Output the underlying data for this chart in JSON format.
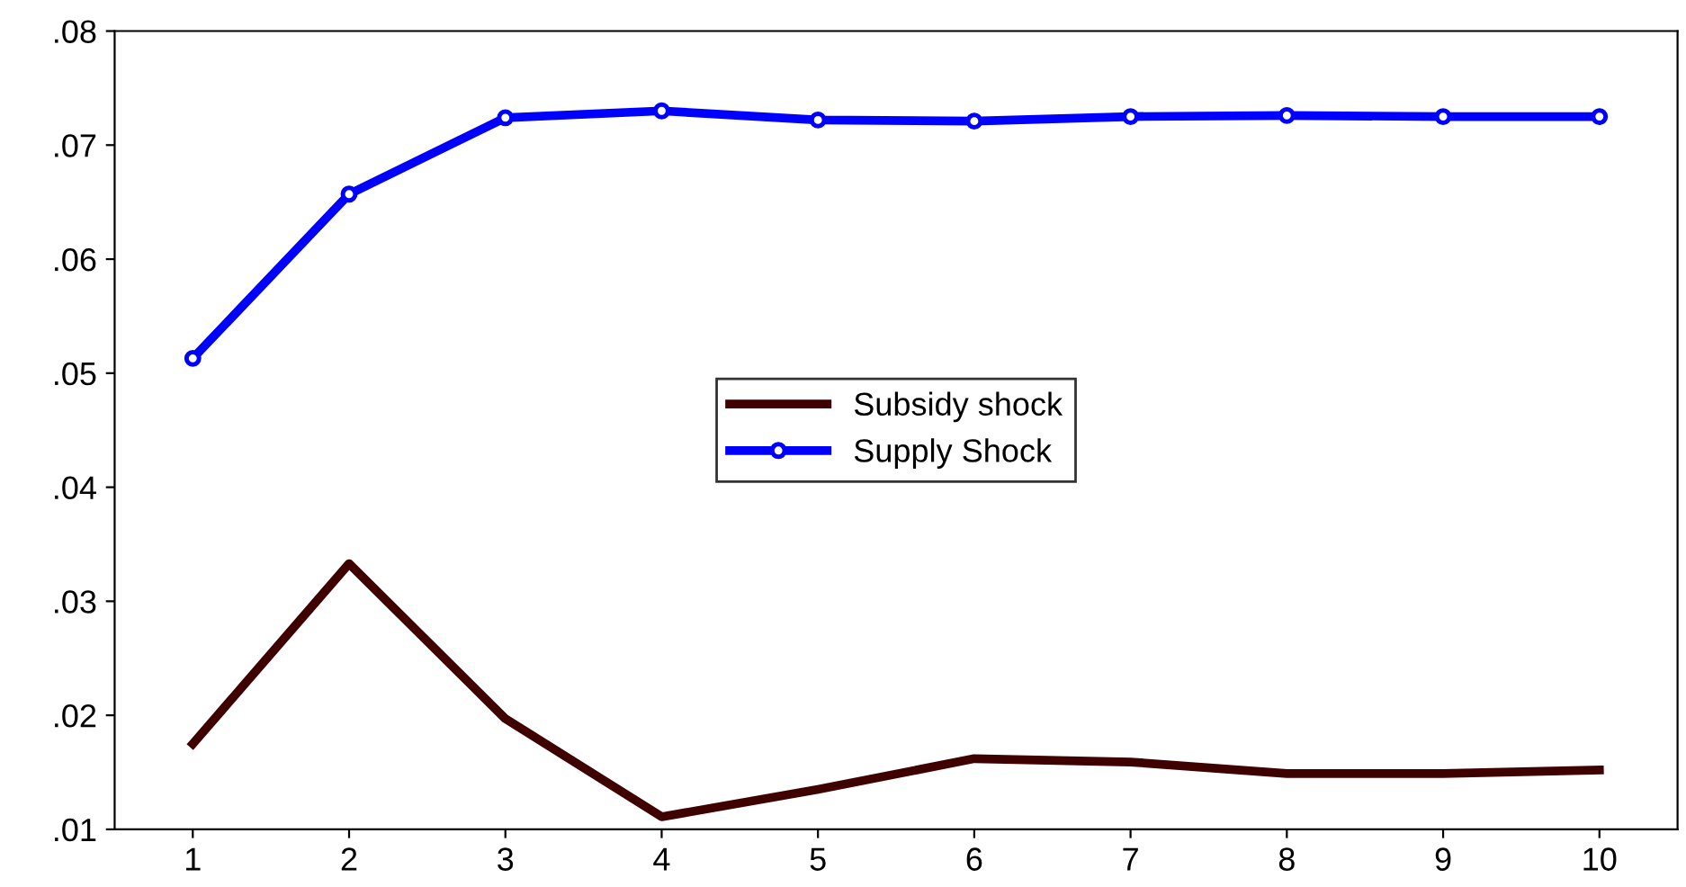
{
  "chart_data": {
    "type": "line",
    "categories": [
      "1",
      "2",
      "3",
      "4",
      "5",
      "6",
      "7",
      "8",
      "9",
      "10"
    ],
    "series": [
      {
        "name": "Subsidy shock",
        "color": "#3f0000",
        "marker": "none",
        "values": [
          0.0175,
          0.0333,
          0.0197,
          0.0111,
          0.0135,
          0.0162,
          0.0159,
          0.0149,
          0.0149,
          0.0152
        ]
      },
      {
        "name": "Supply Shock",
        "color": "#0000ff",
        "marker": "circle",
        "values": [
          0.0513,
          0.0657,
          0.0724,
          0.073,
          0.0722,
          0.0721,
          0.0725,
          0.0726,
          0.0725,
          0.0725
        ]
      }
    ],
    "ylim": [
      0.01,
      0.08
    ],
    "yticks": [
      {
        "value": 0.01,
        "label": ".01"
      },
      {
        "value": 0.02,
        "label": ".02"
      },
      {
        "value": 0.03,
        "label": ".03"
      },
      {
        "value": 0.04,
        "label": ".04"
      },
      {
        "value": 0.05,
        "label": ".05"
      },
      {
        "value": 0.06,
        "label": ".06"
      },
      {
        "value": 0.07,
        "label": ".07"
      },
      {
        "value": 0.08,
        "label": ".08"
      }
    ],
    "grid": false,
    "legend": "center",
    "line_style": "solid"
  }
}
